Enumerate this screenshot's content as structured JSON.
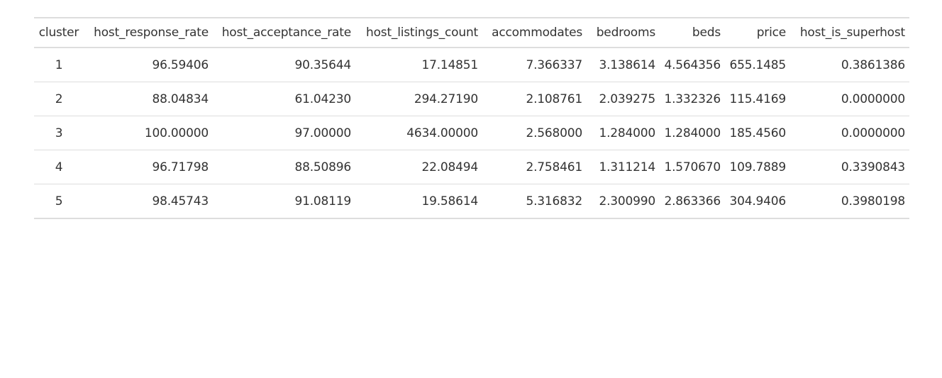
{
  "table": {
    "columns": [
      "cluster",
      "host_response_rate",
      "host_acceptance_rate",
      "host_listings_count",
      "accommodates",
      "bedrooms",
      "beds",
      "price",
      "host_is_superhost"
    ],
    "rows": [
      [
        "1",
        "96.59406",
        "90.35644",
        "17.14851",
        "7.366337",
        "3.138614",
        "4.564356",
        "655.1485",
        "0.3861386"
      ],
      [
        "2",
        "88.04834",
        "61.04230",
        "294.27190",
        "2.108761",
        "2.039275",
        "1.332326",
        "115.4169",
        "0.0000000"
      ],
      [
        "3",
        "100.00000",
        "97.00000",
        "4634.00000",
        "2.568000",
        "1.284000",
        "1.284000",
        "185.4560",
        "0.0000000"
      ],
      [
        "4",
        "96.71798",
        "88.50896",
        "22.08494",
        "2.758461",
        "1.311214",
        "1.570670",
        "109.7889",
        "0.3390843"
      ],
      [
        "5",
        "98.45743",
        "91.08119",
        "19.58614",
        "5.316832",
        "2.300990",
        "2.863366",
        "304.9406",
        "0.3980198"
      ]
    ]
  }
}
